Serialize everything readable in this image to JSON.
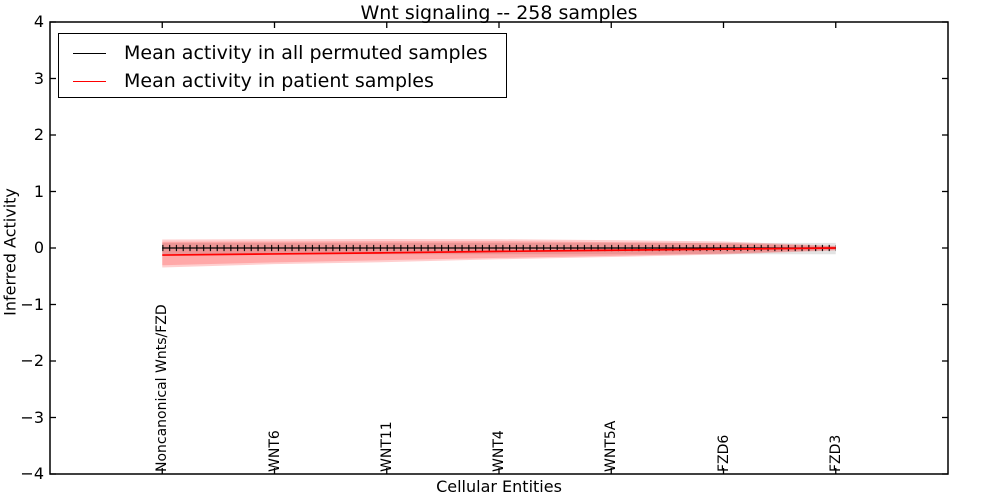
{
  "chart_data": {
    "type": "line",
    "title": "Wnt signaling -- 258 samples",
    "xlabel": "Cellular Entities",
    "ylabel": "Inferred Activity",
    "ylim": [
      -4,
      4
    ],
    "yticks": [
      4,
      3,
      2,
      1,
      0,
      -1,
      -2,
      -3,
      -4
    ],
    "ytick_labels": [
      "4",
      "3",
      "2",
      "1",
      "0",
      "−1",
      "−2",
      "−3",
      "−4"
    ],
    "categories": [
      "Noncanonical Wnts/FZD",
      "WNT6",
      "WNT11",
      "WNT4",
      "WNT5A",
      "FZD6",
      "FZD3"
    ],
    "legend_position": "upper left",
    "grid": false,
    "legend": [
      {
        "label": "Mean activity in all permuted samples",
        "color": "#000000"
      },
      {
        "label": "Mean activity in patient samples",
        "color": "#ff0000"
      }
    ],
    "series": [
      {
        "name": "Mean activity in all permuted samples",
        "color": "#000000",
        "values": [
          0,
          0,
          0,
          0,
          0,
          0,
          0
        ]
      },
      {
        "name": "Mean activity in patient samples",
        "color": "#ff0000",
        "values": [
          -0.125,
          -0.105,
          -0.085,
          -0.06,
          -0.04,
          -0.02,
          0
        ]
      }
    ],
    "bands": [
      {
        "name": "permuted-samples-std",
        "color": "#000000",
        "opacity": 0.11,
        "upper": [
          0.09,
          0.09,
          0.09,
          0.09,
          0.09,
          0.09,
          0.09
        ],
        "lower": [
          -0.11,
          -0.11,
          -0.11,
          -0.11,
          -0.11,
          -0.11,
          -0.11
        ]
      },
      {
        "name": "patient-samples-std-outer",
        "color": "#ff0000",
        "opacity": 0.19,
        "upper": [
          0.15,
          0.155,
          0.16,
          0.155,
          0.14,
          0.115,
          0.04
        ],
        "lower": [
          -0.345,
          -0.285,
          -0.25,
          -0.2,
          -0.16,
          -0.115,
          -0.045
        ]
      },
      {
        "name": "patient-samples-std-inner",
        "color": "#ff0000",
        "opacity": 0.19,
        "upper": [
          0.11,
          0.115,
          0.12,
          0.12,
          0.105,
          0.085,
          0.03
        ],
        "lower": [
          -0.305,
          -0.255,
          -0.215,
          -0.175,
          -0.14,
          -0.1,
          -0.035
        ]
      }
    ],
    "error_caps": {
      "color": "#000000",
      "half_height": 0.05
    }
  }
}
